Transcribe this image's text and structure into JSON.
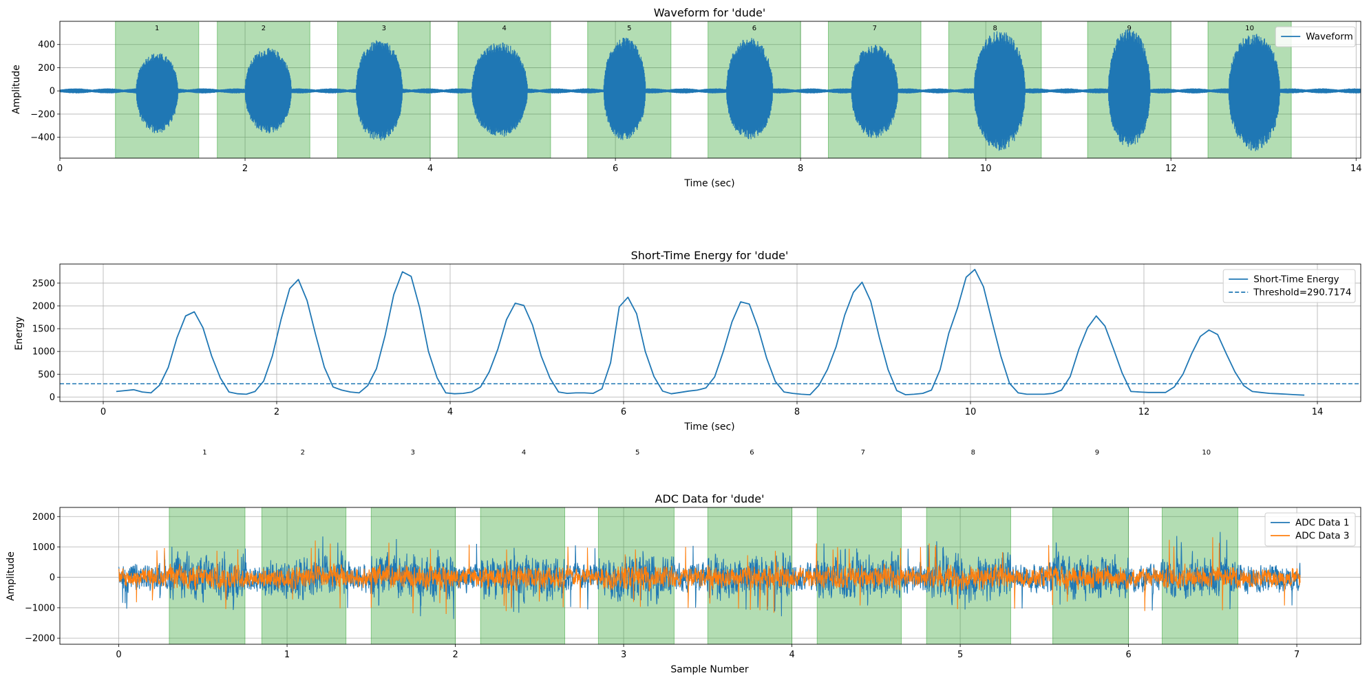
{
  "chart_data": [
    {
      "type": "line",
      "title": "Waveform for 'dude'",
      "xlabel": "Time (sec)",
      "ylabel": "Amplitude",
      "xlim": [
        0,
        14.05
      ],
      "ylim": [
        -580,
        600
      ],
      "xticks": [
        0,
        2,
        4,
        6,
        8,
        10,
        12,
        14
      ],
      "yticks": [
        -400,
        -200,
        0,
        200,
        400
      ],
      "grid": true,
      "legend": {
        "location": "top-right",
        "entries": [
          "Waveform"
        ]
      },
      "series": [
        {
          "name": "Waveform",
          "color": "#1f77b4",
          "noise_amplitude": 22,
          "bursts": [
            {
              "center": 1.05,
              "width": 0.45,
              "peak": 330,
              "trough": -370
            },
            {
              "center": 2.25,
              "width": 0.5,
              "peak": 370,
              "trough": -370
            },
            {
              "center": 3.45,
              "width": 0.5,
              "peak": 440,
              "trough": -440
            },
            {
              "center": 4.75,
              "width": 0.6,
              "peak": 420,
              "trough": -400
            },
            {
              "center": 6.1,
              "width": 0.45,
              "peak": 460,
              "trough": -430
            },
            {
              "center": 7.45,
              "width": 0.5,
              "peak": 460,
              "trough": -420
            },
            {
              "center": 8.8,
              "width": 0.5,
              "peak": 400,
              "trough": -410
            },
            {
              "center": 10.15,
              "width": 0.55,
              "peak": 520,
              "trough": -520
            },
            {
              "center": 11.55,
              "width": 0.45,
              "peak": 540,
              "trough": -490
            },
            {
              "center": 12.9,
              "width": 0.55,
              "peak": 500,
              "trough": -520
            }
          ]
        }
      ],
      "segments": [
        {
          "label": "1",
          "start": 0.6,
          "end": 1.5
        },
        {
          "label": "2",
          "start": 1.7,
          "end": 2.7
        },
        {
          "label": "3",
          "start": 3.0,
          "end": 4.0
        },
        {
          "label": "4",
          "start": 4.3,
          "end": 5.3
        },
        {
          "label": "5",
          "start": 5.7,
          "end": 6.6
        },
        {
          "label": "6",
          "start": 7.0,
          "end": 8.0
        },
        {
          "label": "7",
          "start": 8.3,
          "end": 9.3
        },
        {
          "label": "8",
          "start": 9.6,
          "end": 10.6
        },
        {
          "label": "9",
          "start": 11.1,
          "end": 12.0
        },
        {
          "label": "10",
          "start": 12.4,
          "end": 13.3
        }
      ],
      "segment_color": "#2ca02c"
    },
    {
      "type": "line",
      "title": "Short-Time Energy for 'dude'",
      "xlabel": "Time (sec)",
      "ylabel": "Energy",
      "xlim": [
        -0.5,
        14.5
      ],
      "ylim": [
        -100,
        2920
      ],
      "xticks": [
        0,
        2,
        4,
        6,
        8,
        10,
        12,
        14
      ],
      "yticks": [
        0,
        500,
        1000,
        1500,
        2000,
        2500
      ],
      "grid": true,
      "legend": {
        "location": "top-right",
        "entries": [
          "Short-Time Energy",
          "Threshold=290.7174"
        ]
      },
      "series": [
        {
          "name": "Short-Time Energy",
          "color": "#1f77b4",
          "x": [
            0.15,
            0.25,
            0.35,
            0.45,
            0.55,
            0.65,
            0.75,
            0.85,
            0.95,
            1.05,
            1.15,
            1.25,
            1.35,
            1.45,
            1.55,
            1.65,
            1.75,
            1.85,
            1.95,
            2.05,
            2.15,
            2.25,
            2.35,
            2.45,
            2.55,
            2.65,
            2.75,
            2.85,
            2.95,
            3.05,
            3.15,
            3.25,
            3.35,
            3.45,
            3.55,
            3.65,
            3.75,
            3.85,
            3.95,
            4.05,
            4.15,
            4.25,
            4.35,
            4.45,
            4.55,
            4.65,
            4.75,
            4.85,
            4.95,
            5.05,
            5.15,
            5.25,
            5.35,
            5.45,
            5.55,
            5.65,
            5.75,
            5.85,
            5.95,
            6.05,
            6.15,
            6.25,
            6.35,
            6.45,
            6.55,
            6.65,
            6.75,
            6.85,
            6.95,
            7.05,
            7.15,
            7.25,
            7.35,
            7.45,
            7.55,
            7.65,
            7.75,
            7.85,
            7.95,
            8.05,
            8.15,
            8.25,
            8.35,
            8.45,
            8.55,
            8.65,
            8.75,
            8.85,
            8.95,
            9.05,
            9.15,
            9.25,
            9.35,
            9.45,
            9.55,
            9.65,
            9.75,
            9.85,
            9.95,
            10.05,
            10.15,
            10.25,
            10.35,
            10.45,
            10.55,
            10.65,
            10.75,
            10.85,
            10.95,
            11.05,
            11.15,
            11.25,
            11.35,
            11.45,
            11.55,
            11.65,
            11.75,
            11.85,
            11.95,
            12.05,
            12.15,
            12.25,
            12.35,
            12.45,
            12.55,
            12.65,
            12.75,
            12.85,
            12.95,
            13.05,
            13.15,
            13.25,
            13.35,
            13.45,
            13.55,
            13.65,
            13.75,
            13.85
          ],
          "values": [
            120,
            140,
            160,
            110,
            90,
            260,
            650,
            1300,
            1780,
            1870,
            1520,
            900,
            420,
            110,
            70,
            60,
            120,
            350,
            900,
            1700,
            2380,
            2580,
            2120,
            1360,
            650,
            220,
            150,
            110,
            90,
            250,
            620,
            1350,
            2250,
            2750,
            2650,
            1950,
            1000,
            420,
            90,
            70,
            80,
            110,
            220,
            550,
            1050,
            1700,
            2060,
            2010,
            1580,
            900,
            420,
            110,
            80,
            90,
            90,
            80,
            180,
            750,
            1980,
            2190,
            1830,
            1000,
            450,
            130,
            70,
            100,
            130,
            150,
            200,
            440,
            1000,
            1650,
            2090,
            2040,
            1520,
            850,
            340,
            110,
            80,
            60,
            50,
            250,
            600,
            1100,
            1800,
            2300,
            2520,
            2100,
            1300,
            600,
            140,
            50,
            60,
            80,
            150,
            600,
            1400,
            1950,
            2630,
            2800,
            2420,
            1650,
            900,
            300,
            90,
            60,
            60,
            60,
            80,
            150,
            450,
            1050,
            1520,
            1780,
            1560,
            1050,
            520,
            120,
            110,
            100,
            100,
            100,
            220,
            500,
            950,
            1330,
            1470,
            1370,
            950,
            550,
            250,
            120,
            100,
            80,
            70,
            60,
            50,
            40
          ]
        },
        {
          "name": "Threshold=290.7174",
          "color": "#1f77b4",
          "dashed": true,
          "constant": 290.7174
        }
      ],
      "segment_labels": [
        {
          "label": "1",
          "x": 1.17
        },
        {
          "label": "2",
          "x": 2.3
        },
        {
          "label": "3",
          "x": 3.57
        },
        {
          "label": "4",
          "x": 4.85
        },
        {
          "label": "5",
          "x": 6.16
        },
        {
          "label": "6",
          "x": 7.48
        },
        {
          "label": "7",
          "x": 8.76
        },
        {
          "label": "8",
          "x": 10.03
        },
        {
          "label": "9",
          "x": 11.46
        },
        {
          "label": "10",
          "x": 12.72
        }
      ]
    },
    {
      "type": "line",
      "title": "ADC Data for 'dude'",
      "xlabel": "Sample Number",
      "ylabel": "Amplitude",
      "xlim": [
        -0.35,
        7.38
      ],
      "ylim": [
        -2200,
        2300
      ],
      "xticks": [
        0,
        1,
        2,
        3,
        4,
        5,
        6,
        7
      ],
      "yticks": [
        -2000,
        -1000,
        0,
        1000,
        2000
      ],
      "grid": true,
      "legend": {
        "location": "top-right",
        "entries": [
          "ADC Data 1",
          "ADC Data 3"
        ]
      },
      "series": [
        {
          "name": "ADC Data 1",
          "color": "#1f77b4",
          "x_range": [
            0,
            7.02
          ],
          "typical_amplitude": 650,
          "clip": 2100
        },
        {
          "name": "ADC Data 3",
          "color": "#ff7f0e",
          "x_range": [
            0,
            7.02
          ],
          "typical_amplitude": 420,
          "clip": 2100
        }
      ],
      "segments": [
        {
          "start": 0.3,
          "end": 0.75
        },
        {
          "start": 0.85,
          "end": 1.35
        },
        {
          "start": 1.5,
          "end": 2.0
        },
        {
          "start": 2.15,
          "end": 2.65
        },
        {
          "start": 2.85,
          "end": 3.3
        },
        {
          "start": 3.5,
          "end": 4.0
        },
        {
          "start": 4.15,
          "end": 4.65
        },
        {
          "start": 4.8,
          "end": 5.3
        },
        {
          "start": 5.55,
          "end": 6.0
        },
        {
          "start": 6.2,
          "end": 6.65
        }
      ],
      "segment_color": "#2ca02c"
    }
  ]
}
